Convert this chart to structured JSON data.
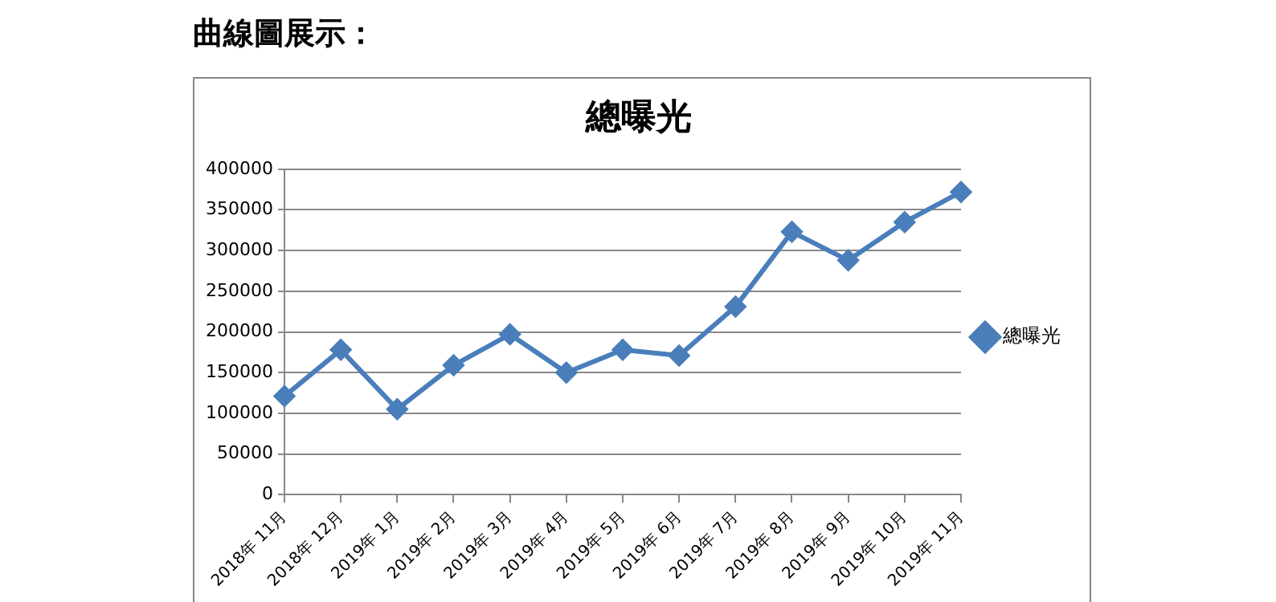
{
  "chart_data": {
    "type": "line",
    "title": "總曝光",
    "annotations": [
      "曲線圖展示："
    ],
    "categories": [
      "2018年 11月",
      "2018年 12月",
      "2019年 1月",
      "2019年 2月",
      "2019年 3月",
      "2019年 4月",
      "2019年 5月",
      "2019年 6月",
      "2019年 7月",
      "2019年 8月",
      "2019年 9月",
      "2019年 10月",
      "2019年 11月"
    ],
    "series": [
      {
        "name": "總曝光",
        "color": "#4a7ebb",
        "values": [
          121000,
          178000,
          105000,
          159000,
          197000,
          150000,
          178000,
          171000,
          231000,
          323000,
          288000,
          335000,
          372000
        ]
      }
    ],
    "ylim": [
      0,
      400000
    ],
    "yticks": [
      0,
      50000,
      100000,
      150000,
      200000,
      250000,
      300000,
      350000,
      400000
    ],
    "grid": "y",
    "legend": "right",
    "marker": "diamond",
    "line_style": "solid"
  }
}
